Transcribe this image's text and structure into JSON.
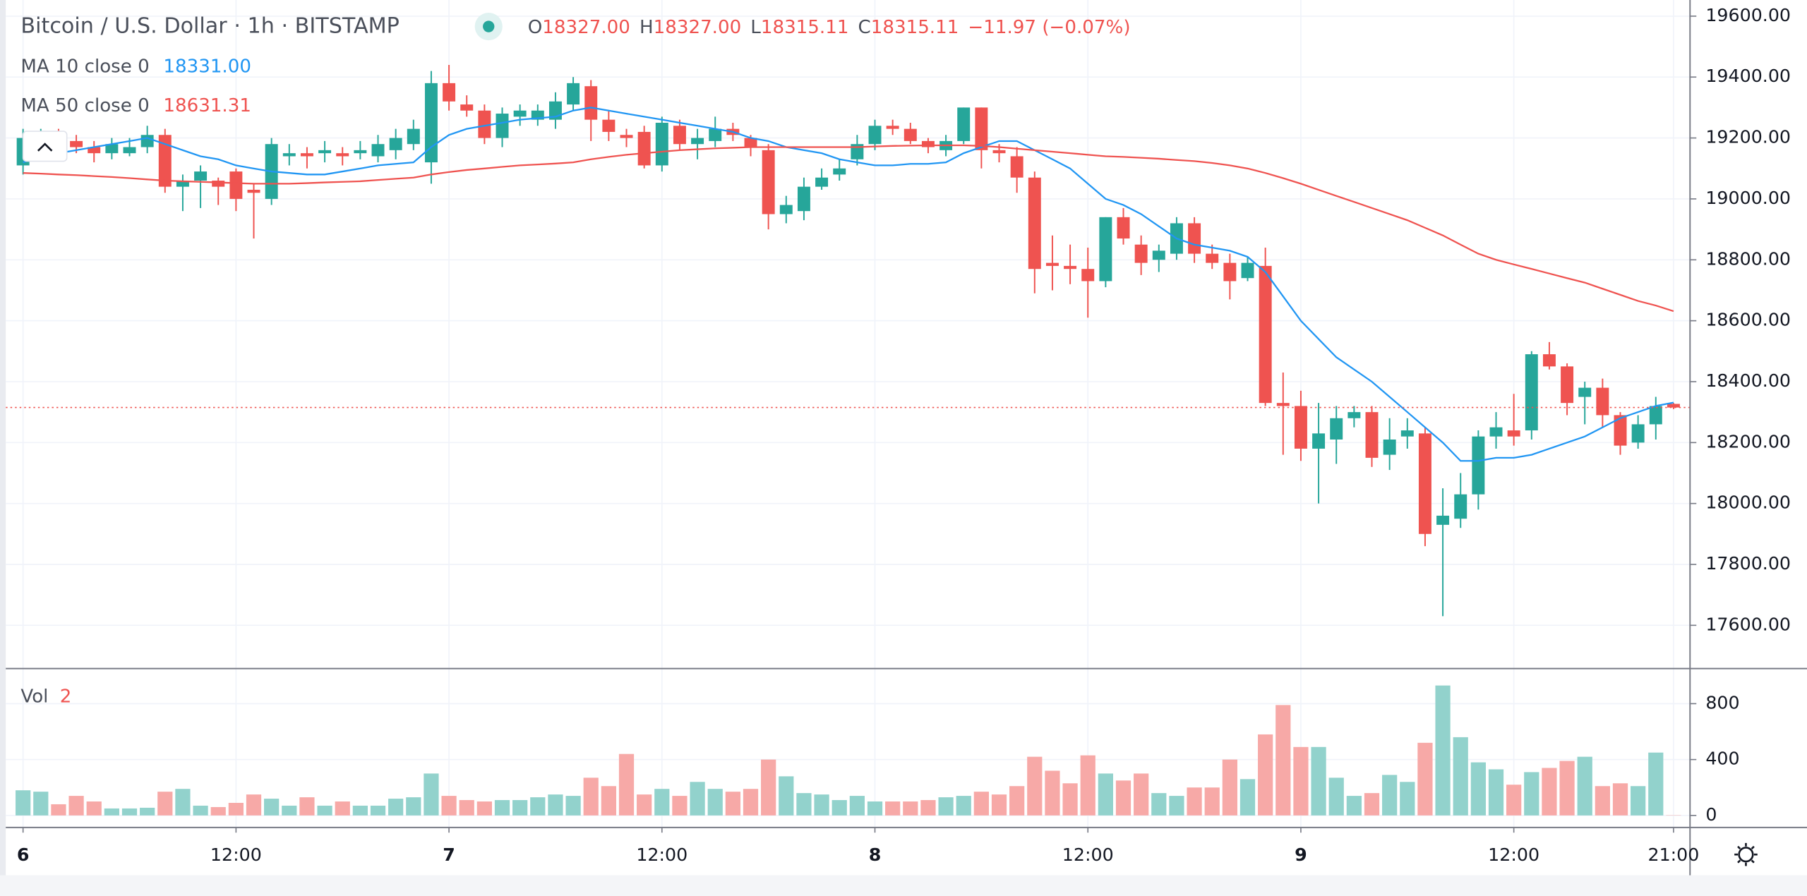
{
  "chart_data": {
    "type": "candlestick",
    "title": "Bitcoin / U.S. Dollar · 1h · BITSTAMP",
    "ohlc_legend": [
      {
        "key": "O",
        "value": "18327.00"
      },
      {
        "key": "H",
        "value": "18327.00"
      },
      {
        "key": "L",
        "value": "18315.11"
      },
      {
        "key": "C",
        "value": "18315.11"
      }
    ],
    "change": "−11.97 (−0.07%)",
    "up_color": "#26a69a",
    "down_color": "#ef5350",
    "categories": [
      "6",
      null,
      null,
      null,
      null,
      null,
      null,
      null,
      null,
      null,
      null,
      null,
      "12:00",
      null,
      null,
      null,
      null,
      null,
      null,
      null,
      null,
      null,
      null,
      null,
      "7",
      null,
      null,
      null,
      null,
      null,
      null,
      null,
      null,
      null,
      null,
      null,
      "12:00",
      null,
      null,
      null,
      null,
      null,
      null,
      null,
      null,
      null,
      null,
      null,
      "8",
      null,
      null,
      null,
      null,
      null,
      null,
      null,
      null,
      null,
      null,
      null,
      "12:00",
      null,
      null,
      null,
      null,
      null,
      null,
      null,
      null,
      null,
      null,
      null,
      "9",
      null,
      null,
      null,
      null,
      null,
      null,
      null,
      null,
      null,
      null,
      null,
      "12:00",
      null,
      null,
      null,
      null,
      null,
      null,
      null,
      null,
      "21:00"
    ],
    "open": [
      19110,
      19170,
      19200,
      19190,
      19170,
      19150,
      19150,
      19170,
      19210,
      19040,
      19060,
      19060,
      19090,
      19030,
      19000,
      19140,
      19150,
      19150,
      19150,
      19150,
      19140,
      19160,
      19180,
      19120,
      19380,
      19310,
      19290,
      19200,
      19270,
      19260,
      19260,
      19310,
      19370,
      19260,
      19210,
      19220,
      19110,
      19240,
      19180,
      19190,
      19230,
      19200,
      19160,
      18950,
      18960,
      19040,
      19080,
      19130,
      19180,
      19240,
      19230,
      19190,
      19160,
      19190,
      19300,
      19160,
      19140,
      19070,
      18790,
      18780,
      18770,
      18730,
      18940,
      18850,
      18800,
      18820,
      18920,
      18820,
      18790,
      18740,
      18780,
      18330,
      18320,
      18180,
      18210,
      18280,
      18300,
      18160,
      18220,
      18230,
      17930,
      17950,
      18030,
      18220,
      18240,
      18240,
      18490,
      18450,
      18350,
      18380,
      18290,
      18200,
      18260,
      18327
    ],
    "high": [
      19230,
      19230,
      19230,
      19210,
      19190,
      19200,
      19200,
      19240,
      19230,
      19080,
      19110,
      19070,
      19100,
      19050,
      19200,
      19180,
      19170,
      19190,
      19170,
      19190,
      19210,
      19230,
      19260,
      19420,
      19440,
      19340,
      19310,
      19300,
      19310,
      19310,
      19350,
      19400,
      19390,
      19290,
      19230,
      19240,
      19270,
      19260,
      19230,
      19270,
      19250,
      19210,
      19180,
      19010,
      19070,
      19100,
      19130,
      19210,
      19260,
      19260,
      19250,
      19200,
      19210,
      19300,
      19300,
      19180,
      19170,
      19090,
      18880,
      18850,
      18840,
      18940,
      18970,
      18880,
      18850,
      18940,
      18940,
      18850,
      18820,
      18810,
      18840,
      18430,
      18370,
      18330,
      18320,
      18320,
      18320,
      18280,
      18280,
      18250,
      18050,
      18100,
      18240,
      18300,
      18360,
      18500,
      18530,
      18460,
      18400,
      18410,
      18300,
      18290,
      18350,
      18330
    ],
    "low": [
      19080,
      19150,
      19160,
      19150,
      19120,
      19130,
      19140,
      19150,
      19020,
      18960,
      18970,
      18980,
      18960,
      18870,
      18980,
      19110,
      19100,
      19120,
      19110,
      19130,
      19120,
      19130,
      19160,
      19050,
      19290,
      19270,
      19180,
      19170,
      19240,
      19240,
      19230,
      19290,
      19190,
      19190,
      19170,
      19100,
      19090,
      19160,
      19130,
      19170,
      19190,
      19140,
      18900,
      18920,
      18930,
      19030,
      19060,
      19110,
      19160,
      19210,
      19180,
      19150,
      19140,
      19180,
      19100,
      19120,
      19020,
      18690,
      18700,
      18720,
      18610,
      18710,
      18850,
      18750,
      18760,
      18800,
      18790,
      18770,
      18670,
      18730,
      18320,
      18160,
      18140,
      18000,
      18130,
      18250,
      18120,
      18110,
      18180,
      17860,
      17630,
      17920,
      17980,
      18180,
      18190,
      18210,
      18440,
      18290,
      18260,
      18250,
      18160,
      18180,
      18210,
      18310
    ],
    "close": [
      19200,
      19200,
      19190,
      19170,
      19150,
      19180,
      19170,
      19210,
      19040,
      19060,
      19090,
      19040,
      19000,
      19020,
      19180,
      19150,
      19140,
      19160,
      19140,
      19160,
      19180,
      19200,
      19230,
      19380,
      19320,
      19290,
      19200,
      19280,
      19290,
      19290,
      19320,
      19380,
      19260,
      19220,
      19200,
      19110,
      19250,
      19180,
      19200,
      19230,
      19210,
      19170,
      18950,
      18980,
      19040,
      19070,
      19100,
      19180,
      19240,
      19230,
      19190,
      19170,
      19190,
      19300,
      19160,
      19150,
      19070,
      18770,
      18780,
      18770,
      18730,
      18940,
      18870,
      18790,
      18830,
      18920,
      18820,
      18790,
      18730,
      18790,
      18330,
      18320,
      18180,
      18230,
      18280,
      18300,
      18150,
      18210,
      18240,
      17900,
      17960,
      18030,
      18220,
      18250,
      18220,
      18490,
      18450,
      18330,
      18380,
      18290,
      18190,
      18260,
      18320,
      18315.11
    ],
    "ylim": [
      17460,
      19653
    ],
    "yticks": [
      {
        "value": 17600,
        "label": "17600.00"
      },
      {
        "value": 17800,
        "label": "17800.00"
      },
      {
        "value": 18000,
        "label": "18000.00"
      },
      {
        "value": 18200,
        "label": "18200.00"
      },
      {
        "value": 18400,
        "label": "18400.00"
      },
      {
        "value": 18600,
        "label": "18600.00"
      },
      {
        "value": 18800,
        "label": "18800.00"
      },
      {
        "value": 19000,
        "label": "19000.00"
      },
      {
        "value": 19200,
        "label": "19200.00"
      },
      {
        "value": 19400,
        "label": "19400.00"
      },
      {
        "value": 19600,
        "label": "19600.00"
      }
    ],
    "grid": true,
    "last_price_line": true,
    "series": [
      {
        "name": "MA 10 close 0",
        "color": "#2196f3",
        "last_label": "18331.00",
        "values": [
          19120,
          19140,
          19150,
          19160,
          19170,
          19180,
          19190,
          19200,
          19180,
          19160,
          19140,
          19130,
          19110,
          19100,
          19090,
          19085,
          19080,
          19080,
          19090,
          19100,
          19110,
          19115,
          19120,
          19170,
          19210,
          19230,
          19240,
          19250,
          19260,
          19265,
          19270,
          19290,
          19300,
          19290,
          19280,
          19270,
          19260,
          19250,
          19240,
          19230,
          19220,
          19200,
          19190,
          19170,
          19160,
          19150,
          19130,
          19120,
          19110,
          19110,
          19115,
          19115,
          19120,
          19150,
          19170,
          19190,
          19190,
          19160,
          19130,
          19100,
          19050,
          19000,
          18980,
          18950,
          18910,
          18870,
          18850,
          18840,
          18830,
          18810,
          18760,
          18680,
          18600,
          18540,
          18480,
          18440,
          18400,
          18350,
          18300,
          18250,
          18200,
          18140,
          18140,
          18150,
          18150,
          18160,
          18180,
          18200,
          18220,
          18250,
          18280,
          18300,
          18320,
          18331
        ]
      },
      {
        "name": "MA 50 close 0",
        "color": "#ef5350",
        "last_label": "18631.31",
        "values": [
          19085,
          19083,
          19080,
          19078,
          19075,
          19072,
          19068,
          19064,
          19060,
          19058,
          19056,
          19054,
          19052,
          19050,
          19050,
          19050,
          19052,
          19054,
          19056,
          19058,
          19062,
          19066,
          19070,
          19080,
          19088,
          19095,
          19100,
          19105,
          19110,
          19113,
          19116,
          19120,
          19130,
          19138,
          19145,
          19150,
          19155,
          19160,
          19163,
          19166,
          19168,
          19170,
          19170,
          19170,
          19170,
          19170,
          19170,
          19170,
          19172,
          19174,
          19175,
          19176,
          19176,
          19176,
          19174,
          19170,
          19165,
          19160,
          19155,
          19150,
          19145,
          19140,
          19138,
          19135,
          19132,
          19128,
          19124,
          19118,
          19110,
          19100,
          19085,
          19068,
          19050,
          19030,
          19010,
          18990,
          18970,
          18950,
          18930,
          18905,
          18880,
          18850,
          18820,
          18800,
          18785,
          18770,
          18755,
          18740,
          18725,
          18705,
          18685,
          18665,
          18650,
          18631.31
        ]
      }
    ],
    "volume": {
      "name": "Vol",
      "up_color": "#92d2cc",
      "down_color": "#f7a9a7",
      "values": [
        180,
        170,
        80,
        140,
        100,
        50,
        50,
        55,
        170,
        190,
        70,
        60,
        90,
        150,
        120,
        70,
        130,
        70,
        100,
        70,
        70,
        120,
        130,
        300,
        140,
        110,
        100,
        110,
        110,
        130,
        150,
        140,
        270,
        210,
        440,
        150,
        190,
        140,
        240,
        190,
        170,
        190,
        400,
        280,
        160,
        150,
        110,
        140,
        100,
        100,
        100,
        110,
        130,
        140,
        170,
        150,
        210,
        420,
        320,
        230,
        430,
        300,
        250,
        300,
        160,
        140,
        200,
        200,
        400,
        260,
        580,
        790,
        490,
        490,
        270,
        140,
        160,
        290,
        240,
        520,
        930,
        560,
        380,
        330,
        220,
        310,
        340,
        390,
        420,
        210,
        230,
        210,
        450,
        2
      ],
      "ylim": [
        -82,
        1039
      ],
      "yticks": [
        0,
        400,
        800
      ]
    }
  }
}
